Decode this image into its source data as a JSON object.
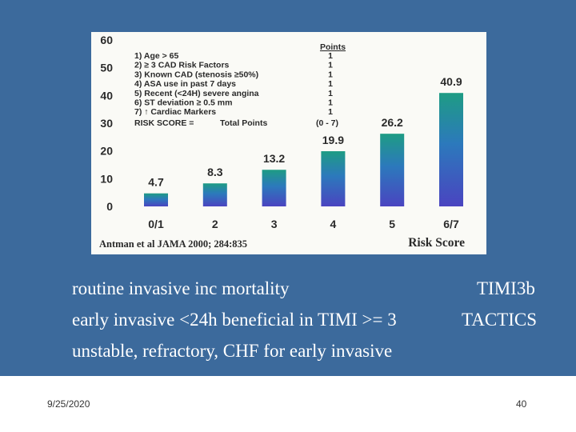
{
  "chart_data": {
    "type": "bar",
    "categories": [
      "0/1",
      "2",
      "3",
      "4",
      "5",
      "6/7"
    ],
    "values": [
      4.7,
      8.3,
      13.2,
      19.9,
      26.2,
      40.9
    ],
    "value_labels": [
      "4.7",
      "8.3",
      "13.2",
      "19.9",
      "26.2",
      "40.9"
    ],
    "xlabel": "Risk Score",
    "ylabel": "",
    "ylim": [
      0,
      60
    ],
    "yticks": [
      0,
      10,
      20,
      30,
      40,
      50,
      60
    ],
    "grid": false,
    "legend": {
      "header": "Points",
      "items": [
        {
          "label": "1) Age > 65",
          "points": "1"
        },
        {
          "label": "2) ≥ 3 CAD Risk Factors",
          "points": "1"
        },
        {
          "label": "3) Known CAD (stenosis ≥50%)",
          "points": "1"
        },
        {
          "label": "4) ASA use in past 7 days",
          "points": "1"
        },
        {
          "label": "5) Recent (<24H) severe angina",
          "points": "1"
        },
        {
          "label": "6) ST deviation ≥ 0.5 mm",
          "points": "1"
        },
        {
          "label": "7) ↑ Cardiac Markers",
          "points": "1"
        }
      ],
      "total_left": "RISK SCORE =",
      "total_mid": "Total Points",
      "total_range": "(0 - 7)"
    },
    "source": "Antman et al JAMA 2000; 284:835",
    "colors": {
      "bar_top": "#1e9c84",
      "bar_mid": "#2c79bc",
      "bar_bottom": "#4a44c0",
      "panel": "#fafaf6",
      "text": "#2a2a2a"
    }
  },
  "bullets": {
    "line1": "routine invasive inc mortality",
    "line1_right": "TIMI3b",
    "line2": "early invasive <24h beneficial in TIMI >= 3",
    "line2_right": "TACTICS",
    "line3": "unstable, refractory, CHF for early invasive"
  },
  "footer": {
    "date": "9/25/2020",
    "page": "40"
  },
  "colors": {
    "background": "#3c6a9c"
  }
}
